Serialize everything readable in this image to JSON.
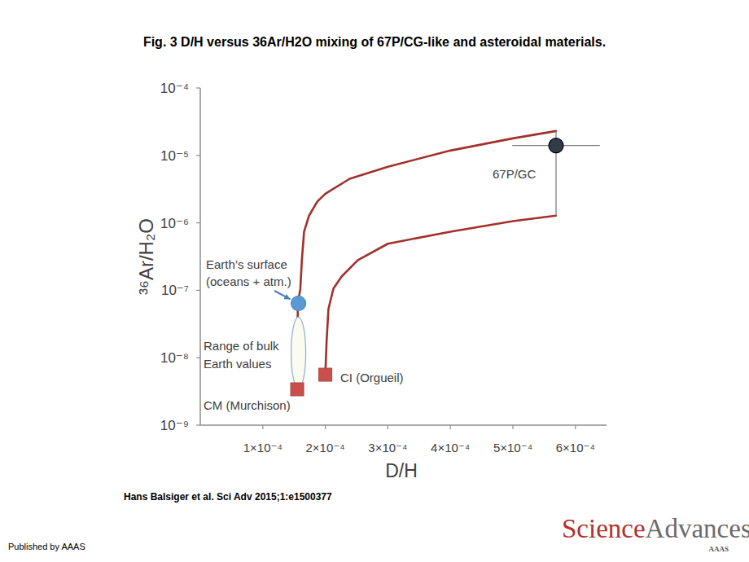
{
  "title": "Fig. 3 D/H versus 36Ar/H2O mixing of 67P/CG-like and asteroidal materials.",
  "citation": "Hans Balsiger et al. Sci Adv 2015;1:e1500377",
  "publisher": "Published by AAAS",
  "logo": {
    "first": "Science",
    "second": "Advances",
    "sub": "AAAS"
  },
  "chart_data": {
    "type": "scatter",
    "x_label": "D/H",
    "y_label": "³⁶Ar/H₂O",
    "log": "y",
    "grid": false,
    "xlim": [
      0,
      0.00065
    ],
    "ylim": [
      1e-09,
      0.0001
    ],
    "xticks": [
      {
        "value": 0.0001,
        "label": "1×10⁻⁴"
      },
      {
        "value": 0.0002,
        "label": "2×10⁻⁴"
      },
      {
        "value": 0.0003,
        "label": "3×10⁻⁴"
      },
      {
        "value": 0.0004,
        "label": "4×10⁻⁴"
      },
      {
        "value": 0.0005,
        "label": "5×10⁻⁴"
      },
      {
        "value": 0.0006,
        "label": "6×10⁻⁴"
      }
    ],
    "yticks": [
      {
        "value": 1e-09,
        "label": "10⁻⁹"
      },
      {
        "value": 1e-08,
        "label": "10⁻⁸"
      },
      {
        "value": 1e-07,
        "label": "10⁻⁷"
      },
      {
        "value": 1e-06,
        "label": "10⁻⁶"
      },
      {
        "value": 1e-05,
        "label": "10⁻⁵"
      },
      {
        "value": 0.0001,
        "label": "10⁻⁴"
      }
    ],
    "series": [
      {
        "type": "line",
        "color": "#a3302a",
        "x": [
          0.000155,
          0.000156,
          0.00016,
          0.0001625,
          0.000166,
          0.000174,
          0.000187,
          0.0002,
          0.000239,
          0.0003,
          0.0004,
          0.0005,
          0.000569
        ],
        "values": [
          3.4e-09,
          6.4e-08,
          1.05e-07,
          2.8e-07,
          7.4e-07,
          1.28e-06,
          2.06e-06,
          2.7e-06,
          4.5e-06,
          6.8e-06,
          1.18e-05,
          1.79e-05,
          2.3e-05
        ]
      },
      {
        "type": "line",
        "color": "#a3302a",
        "x": [
          0.0002,
          0.000202,
          0.000205,
          0.000213,
          0.000226,
          0.000252,
          0.0003,
          0.0004,
          0.0005,
          0.000569
        ],
        "values": [
          5.6e-09,
          1.74e-08,
          5.3e-08,
          1.06e-07,
          1.6e-07,
          2.8e-07,
          4.9e-07,
          7.4e-07,
          1.06e-06,
          1.28e-06
        ]
      },
      {
        "type": "scatter",
        "label": [
          "67P/GC"
        ],
        "color": "#323b46",
        "marker": "circle",
        "x": [
          0.000569
        ],
        "values": [
          1.4e-05
        ],
        "x_error": [
          7e-05
        ],
        "y_low": [
          1.28e-06
        ],
        "y_high": [
          2.3e-05
        ]
      },
      {
        "type": "scatter",
        "label": [
          "Earth’s surface",
          "(oceans + atm.)"
        ],
        "color": "#5b9bd5",
        "marker": "circle",
        "x": [
          0.000157
        ],
        "values": [
          6.4e-08
        ]
      },
      {
        "type": "scatter",
        "label": [
          "CM (Murchison)"
        ],
        "color": "#c9504a",
        "marker": "square",
        "x": [
          0.000155
        ],
        "values": [
          3.4e-09
        ]
      },
      {
        "type": "scatter",
        "label": [
          "CI (Orgueil)"
        ],
        "color": "#c9504a",
        "marker": "square",
        "x": [
          0.0002
        ],
        "values": [
          5.6e-09
        ]
      }
    ],
    "range": {
      "label": [
        "Range of bulk",
        "Earth values"
      ],
      "color": "#fbfbef",
      "x": 0.000157,
      "y_low": 3.5e-09,
      "y_high": 4e-08
    }
  }
}
